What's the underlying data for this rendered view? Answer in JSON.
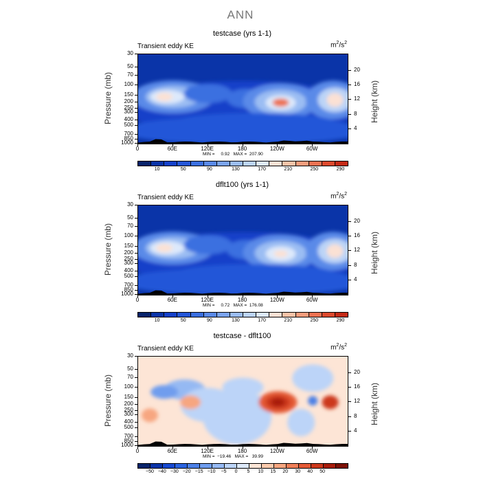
{
  "figure": {
    "title": "ANN"
  },
  "palettes": {
    "ke": [
      "#08246b",
      "#0a34a8",
      "#1441c9",
      "#2456d8",
      "#3a6fe0",
      "#5a8ae8",
      "#7ba4ef",
      "#9bbdf3",
      "#bcd4f7",
      "#dde9fb",
      "#fbe1d4",
      "#f9c3a8",
      "#f59d7d",
      "#ec7252",
      "#dd4a2e",
      "#c52b17",
      "#a31a0a",
      "#7d1104"
    ],
    "diff": [
      "#08246b",
      "#0a34a8",
      "#1749d1",
      "#2a63df",
      "#4b80e6",
      "#6f9dee",
      "#95b9f3",
      "#bcd4f8",
      "#dde9fb",
      "#fde5d6",
      "#fbcaad",
      "#f7a680",
      "#f07f58",
      "#e45a36",
      "#cc381c",
      "#a91d0b",
      "#7d1104"
    ]
  },
  "panels": [
    {
      "id": "p1",
      "title": "testcase (yrs 1-1)",
      "subtitle": "Transient eddy KE",
      "units_base": "m",
      "units_exp1": "2",
      "units_mid": "/s",
      "units_exp2": "2",
      "minmax": "MIN =     0.92   MAX =  207.90",
      "xlabel": "",
      "ylabel": "Pressure (mb)",
      "y2label": "Height (km)",
      "xticks": [
        "0",
        "60E",
        "120E",
        "180",
        "120W",
        "60W"
      ],
      "yticks": [
        "30",
        "50",
        "70",
        "100",
        "150",
        "200",
        "250",
        "300",
        "400",
        "500",
        "700",
        "850",
        "1000"
      ],
      "y2ticks": [
        "20",
        "16",
        "12",
        "8",
        "4"
      ],
      "cbar_labels": [
        "10",
        "50",
        "90",
        "130",
        "170",
        "210",
        "250",
        "290"
      ],
      "chart_data": {
        "type": "heatmap",
        "variable": "Transient eddy KE",
        "units": "m2/s2",
        "x_range": [
          0,
          360
        ],
        "y_pressure_range_mb": [
          1000,
          30
        ],
        "min": 0.92,
        "max": 207.9,
        "levels": [
          10,
          30,
          50,
          70,
          90,
          110,
          130,
          150,
          170,
          190,
          210,
          230,
          250,
          270,
          290
        ],
        "maxima": [
          {
            "lon": 45,
            "p_mb": 160,
            "value": 170
          },
          {
            "lon": 245,
            "p_mb": 200,
            "value": 207
          },
          {
            "lon": 338,
            "p_mb": 180,
            "value": 190
          },
          {
            "lon": 120,
            "p_mb": 130,
            "value": 90
          },
          {
            "lon": 185,
            "p_mb": 150,
            "value": 70
          }
        ]
      }
    },
    {
      "id": "p2",
      "title": "dflt100 (yrs 1-1)",
      "subtitle": "Transient eddy KE",
      "units_base": "m",
      "units_exp1": "2",
      "units_mid": "/s",
      "units_exp2": "2",
      "minmax": "MIN =     0.72   MAX =  176.08",
      "ylabel": "Pressure (mb)",
      "y2label": "Height (km)",
      "xticks": [
        "0",
        "60E",
        "120E",
        "180",
        "120W",
        "60W"
      ],
      "yticks": [
        "30",
        "50",
        "70",
        "100",
        "150",
        "200",
        "250",
        "300",
        "400",
        "500",
        "700",
        "850",
        "1000"
      ],
      "y2ticks": [
        "20",
        "16",
        "12",
        "8",
        "4"
      ],
      "cbar_labels": [
        "10",
        "50",
        "90",
        "130",
        "170",
        "210",
        "250",
        "290"
      ],
      "chart_data": {
        "type": "heatmap",
        "variable": "Transient eddy KE",
        "units": "m2/s2",
        "x_range": [
          0,
          360
        ],
        "y_pressure_range_mb": [
          1000,
          30
        ],
        "min": 0.72,
        "max": 176.08,
        "levels": [
          10,
          30,
          50,
          70,
          90,
          110,
          130,
          150,
          170,
          190,
          210,
          230,
          250,
          270,
          290
        ],
        "maxima": [
          {
            "lon": 45,
            "p_mb": 160,
            "value": 165
          },
          {
            "lon": 245,
            "p_mb": 200,
            "value": 170
          },
          {
            "lon": 338,
            "p_mb": 180,
            "value": 176
          },
          {
            "lon": 120,
            "p_mb": 130,
            "value": 90
          },
          {
            "lon": 185,
            "p_mb": 150,
            "value": 70
          }
        ]
      }
    },
    {
      "id": "p3",
      "title": "testcase - dflt100",
      "subtitle": "Transient eddy KE",
      "units_base": "m",
      "units_exp1": "2",
      "units_mid": "/s",
      "units_exp2": "2",
      "minmax": "MIN =  −19.46   MAX =   39.99",
      "ylabel": "Pressure (mb)",
      "y2label": "Height (km)",
      "xticks": [
        "0",
        "60E",
        "120E",
        "180",
        "120W",
        "60W"
      ],
      "yticks": [
        "30",
        "50",
        "70",
        "100",
        "150",
        "200",
        "250",
        "300",
        "400",
        "500",
        "700",
        "850",
        "1000"
      ],
      "y2ticks": [
        "20",
        "16",
        "12",
        "8",
        "4"
      ],
      "cbar_labels": [
        "−50",
        "−40",
        "−30",
        "−20",
        "−15",
        "−10",
        "−5",
        "0",
        "5",
        "10",
        "15",
        "20",
        "30",
        "40",
        "50"
      ],
      "chart_data": {
        "type": "heatmap",
        "variable": "Transient eddy KE difference",
        "units": "m2/s2",
        "x_range": [
          0,
          360
        ],
        "y_pressure_range_mb": [
          1000,
          30
        ],
        "min": -19.46,
        "max": 39.99,
        "levels": [
          -50,
          -40,
          -30,
          -20,
          -15,
          -10,
          -5,
          0,
          5,
          10,
          15,
          20,
          30,
          40,
          50
        ],
        "maxima": [
          {
            "lon": 240,
            "p_mb": 180,
            "value": 40
          },
          {
            "lon": 330,
            "p_mb": 180,
            "value": 30
          },
          {
            "lon": 300,
            "p_mb": 170,
            "value": -19
          },
          {
            "lon": 45,
            "p_mb": 120,
            "value": -15
          }
        ]
      }
    }
  ]
}
